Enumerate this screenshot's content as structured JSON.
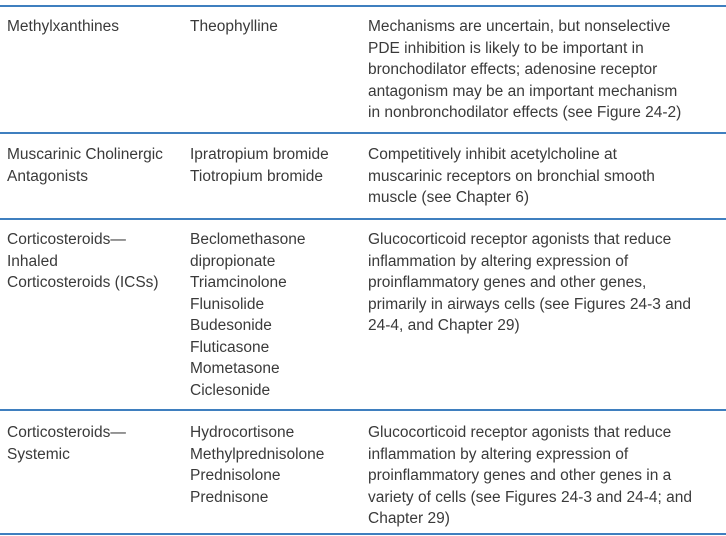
{
  "rows": [
    {
      "class_name": [
        "Methylxanthines"
      ],
      "drugs": [
        "Theophylline"
      ],
      "mechanism": [
        "Mechanisms are uncertain, but nonselective",
        "PDE inhibition is likely to be important in",
        "bronchodilator effects; adenosine receptor",
        "antagonism may be an important mechanism",
        "in nonbronchodilator effects (see Figure 24-2)"
      ]
    },
    {
      "class_name": [
        "Muscarinic Cholinergic",
        "Antagonists"
      ],
      "drugs": [
        "Ipratropium bromide",
        "Tiotropium bromide"
      ],
      "mechanism": [
        "Competitively inhibit acetylcholine at",
        "muscarinic receptors on bronchial smooth",
        "muscle (see Chapter 6)"
      ]
    },
    {
      "class_name": [
        "Corticosteroids—",
        "Inhaled",
        "Corticosteroids (ICSs)"
      ],
      "drugs": [
        "Beclomethasone",
        "dipropionate",
        "Triamcinolone",
        "Flunisolide",
        "Budesonide",
        "Fluticasone",
        "Mometasone",
        "Ciclesonide"
      ],
      "mechanism": [
        "Glucocorticoid receptor agonists that reduce",
        "inflammation by altering expression of",
        "proinflammatory genes and other genes,",
        "primarily in airways cells (see Figures 24-3 and",
        "24-4, and Chapter 29)"
      ]
    },
    {
      "class_name": [
        "Corticosteroids—",
        "Systemic"
      ],
      "drugs": [
        "Hydrocortisone",
        "Methylprednisolone",
        "Prednisolone",
        "Prednisone"
      ],
      "mechanism": [
        "Glucocorticoid receptor agonists that reduce",
        "inflammation by altering expression of",
        "proinflammatory genes and other genes in a",
        "variety of cells (see Figures 24-3 and 24-4; and",
        "Chapter 29)"
      ]
    }
  ],
  "colors": {
    "rule": "#3f7fbf",
    "text": "#3a3a3a"
  }
}
